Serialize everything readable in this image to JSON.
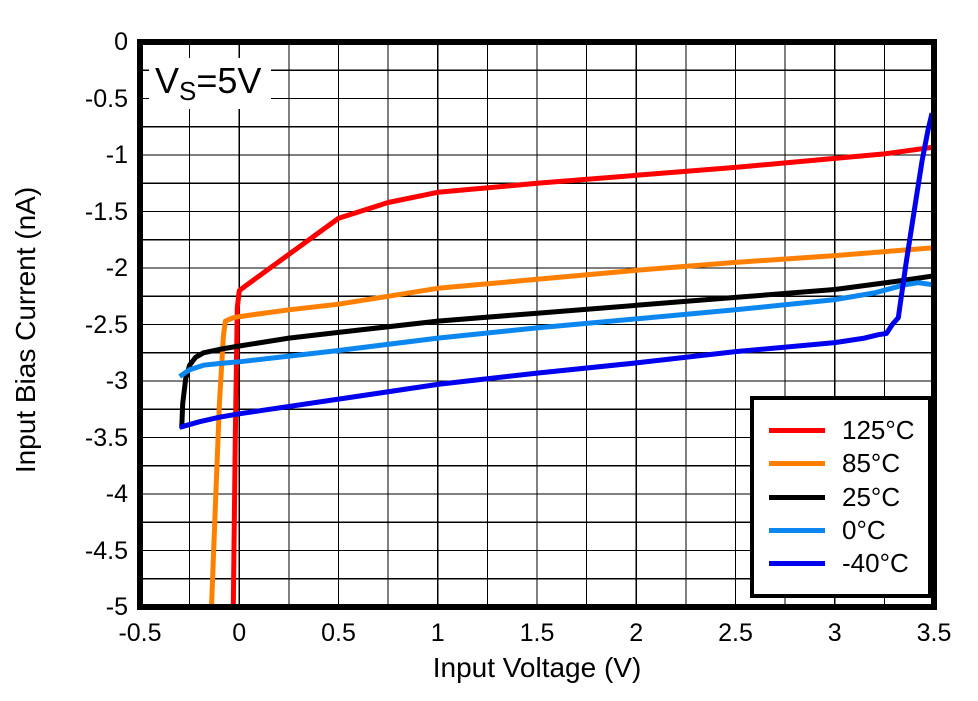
{
  "annotation": {
    "main": "V",
    "sub": "S",
    "rest": "=5V"
  },
  "chart_data": {
    "type": "line",
    "title": "",
    "xlabel": "Input Voltage (V)",
    "ylabel": "Input Bias Current (nA)",
    "xlim": [
      -0.5,
      3.5
    ],
    "ylim": [
      -5,
      0
    ],
    "grid": true,
    "grid_step_x": 0.25,
    "grid_step_y": 0.25,
    "legend_position": "lower-right",
    "annotation_text": "Vs=5V",
    "x_tick_values": [
      -0.5,
      0,
      0.5,
      1,
      1.5,
      2,
      2.5,
      3,
      3.5
    ],
    "x_tick_labels": [
      "-0.5",
      "0",
      "0.5",
      "1",
      "1.5",
      "2",
      "2.5",
      "3",
      "3.5"
    ],
    "y_tick_values": [
      0,
      -0.5,
      -1,
      -1.5,
      -2,
      -2.5,
      -3,
      -3.5,
      -4,
      -4.5,
      -5
    ],
    "y_tick_labels": [
      "0",
      "-0.5",
      "-1",
      "-1.5",
      "-2",
      "-2.5",
      "-3",
      "-3.5",
      "-4",
      "-4.5",
      "-5"
    ],
    "series": [
      {
        "name": "125°C",
        "color": "#FF0000",
        "points": [
          [
            -0.03,
            -5.0
          ],
          [
            -0.02,
            -3.5
          ],
          [
            -0.01,
            -2.35
          ],
          [
            0.0,
            -2.2
          ],
          [
            0.03,
            -2.16
          ],
          [
            0.5,
            -1.56
          ],
          [
            0.75,
            -1.42
          ],
          [
            1.0,
            -1.33
          ],
          [
            1.5,
            -1.25
          ],
          [
            2.0,
            -1.18
          ],
          [
            2.5,
            -1.11
          ],
          [
            3.0,
            -1.03
          ],
          [
            3.25,
            -0.99
          ],
          [
            3.5,
            -0.93
          ]
        ]
      },
      {
        "name": "85°C",
        "color": "#FF8000",
        "points": [
          [
            -0.14,
            -5.0
          ],
          [
            -0.12,
            -4.1
          ],
          [
            -0.1,
            -3.2
          ],
          [
            -0.08,
            -2.6
          ],
          [
            -0.07,
            -2.47
          ],
          [
            -0.03,
            -2.44
          ],
          [
            0.0,
            -2.43
          ],
          [
            0.25,
            -2.37
          ],
          [
            0.5,
            -2.32
          ],
          [
            0.75,
            -2.25
          ],
          [
            1.0,
            -2.18
          ],
          [
            1.5,
            -2.1
          ],
          [
            2.0,
            -2.02
          ],
          [
            2.5,
            -1.95
          ],
          [
            3.0,
            -1.89
          ],
          [
            3.5,
            -1.82
          ]
        ]
      },
      {
        "name": "25°C",
        "color": "#000000",
        "points": [
          [
            -0.29,
            -3.42
          ],
          [
            -0.285,
            -3.2
          ],
          [
            -0.27,
            -2.98
          ],
          [
            -0.25,
            -2.86
          ],
          [
            -0.22,
            -2.79
          ],
          [
            -0.18,
            -2.75
          ],
          [
            -0.1,
            -2.72
          ],
          [
            0.0,
            -2.69
          ],
          [
            0.25,
            -2.62
          ],
          [
            0.5,
            -2.57
          ],
          [
            1.0,
            -2.47
          ],
          [
            1.5,
            -2.4
          ],
          [
            2.0,
            -2.33
          ],
          [
            2.5,
            -2.26
          ],
          [
            3.0,
            -2.19
          ],
          [
            3.3,
            -2.12
          ],
          [
            3.5,
            -2.07
          ]
        ]
      },
      {
        "name": "0°C",
        "color": "#0C87F0",
        "points": [
          [
            -0.3,
            -2.96
          ],
          [
            -0.25,
            -2.9
          ],
          [
            -0.18,
            -2.86
          ],
          [
            -0.1,
            -2.845
          ],
          [
            0.0,
            -2.83
          ],
          [
            0.5,
            -2.73
          ],
          [
            1.0,
            -2.62
          ],
          [
            1.5,
            -2.53
          ],
          [
            2.0,
            -2.45
          ],
          [
            2.5,
            -2.37
          ],
          [
            3.0,
            -2.28
          ],
          [
            3.2,
            -2.22
          ],
          [
            3.35,
            -2.15
          ],
          [
            3.42,
            -2.13
          ],
          [
            3.5,
            -2.15
          ]
        ]
      },
      {
        "name": "-40°C",
        "color": "#0000EE",
        "points": [
          [
            -0.3,
            -3.41
          ],
          [
            -0.2,
            -3.36
          ],
          [
            -0.1,
            -3.32
          ],
          [
            0.0,
            -3.29
          ],
          [
            0.5,
            -3.16
          ],
          [
            1.0,
            -3.03
          ],
          [
            1.5,
            -2.93
          ],
          [
            2.0,
            -2.84
          ],
          [
            2.5,
            -2.74
          ],
          [
            3.0,
            -2.66
          ],
          [
            3.15,
            -2.62
          ],
          [
            3.22,
            -2.59
          ],
          [
            3.26,
            -2.58
          ],
          [
            3.29,
            -2.5
          ],
          [
            3.32,
            -2.44
          ],
          [
            3.36,
            -1.95
          ],
          [
            3.4,
            -1.5
          ],
          [
            3.44,
            -1.05
          ],
          [
            3.47,
            -0.78
          ],
          [
            3.49,
            -0.63
          ]
        ]
      }
    ]
  }
}
